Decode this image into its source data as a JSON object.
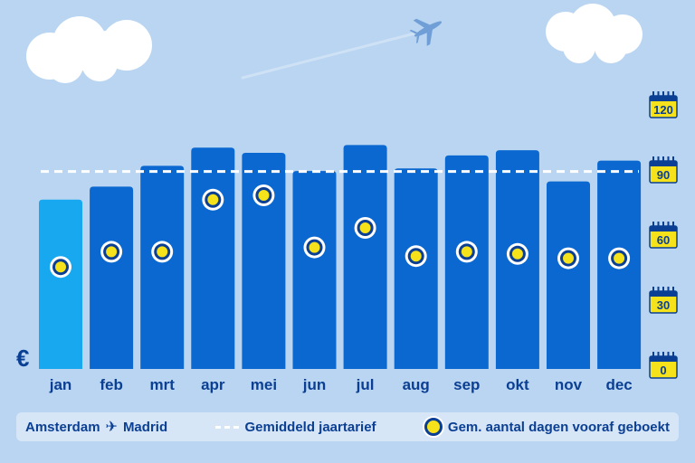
{
  "chart_data": {
    "type": "bar",
    "categories": [
      "jan",
      "feb",
      "mrt",
      "apr",
      "mei",
      "jun",
      "jul",
      "aug",
      "sep",
      "okt",
      "nov",
      "dec"
    ],
    "series": [
      {
        "name": "Amsterdam ✈ Madrid",
        "values": [
          65,
          70,
          78,
          85,
          83,
          76,
          86,
          77,
          82,
          84,
          72,
          80
        ]
      },
      {
        "name": "Gem. aantal dagen vooraf geboekt",
        "values": [
          47,
          54,
          54,
          78,
          80,
          56,
          65,
          52,
          54,
          53,
          51,
          51
        ]
      }
    ],
    "reference_line": {
      "name": "Gemiddeld jaartarief",
      "value": 91
    },
    "currency_symbol": "€",
    "right_axis": {
      "ticks": [
        "120",
        "90",
        "60",
        "30",
        "0"
      ],
      "ylim": [
        0,
        120
      ]
    },
    "left_axis_ylim": [
      0,
      100
    ],
    "highlight_index": 0,
    "colors": {
      "bar": "#0a68d0",
      "bar_highlight": "#18a8f0",
      "reference_line": "#ffffff",
      "dot_fill": "#f5e21a",
      "dot_ring": "#0b3f93",
      "text": "#0b3f93",
      "calendar": "#f5e21a"
    }
  },
  "legend": {
    "route_from": "Amsterdam",
    "route_icon": "airplane-icon",
    "route_to": "Madrid",
    "line_label": "Gemiddeld jaartarief",
    "dot_label": "Gem. aantal dagen vooraf geboekt"
  },
  "icons": {
    "sky_plane": "airplane-icon",
    "calendar": "calendar-icon",
    "cloud": "cloud-icon"
  }
}
